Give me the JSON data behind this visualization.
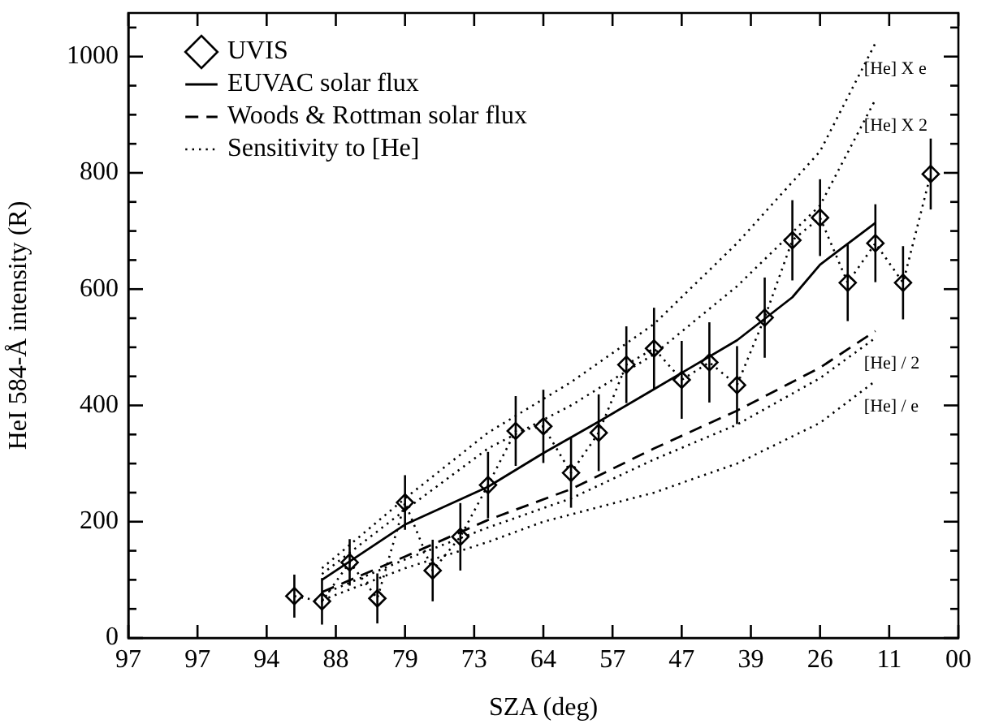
{
  "chart_data": {
    "type": "line",
    "xlabel": "SZA (deg)",
    "ylabel": "HeI 584-Å intensity (R)",
    "categories": [
      "97",
      null,
      null,
      null,
      null,
      "97",
      null,
      null,
      null,
      null,
      "94",
      null,
      null,
      null,
      null,
      "88",
      null,
      null,
      null,
      null,
      "79",
      null,
      null,
      null,
      null,
      "73",
      null,
      null,
      null,
      null,
      "64",
      null,
      null,
      null,
      null,
      "57",
      null,
      null,
      null,
      null,
      "47",
      null,
      null,
      null,
      null,
      "39",
      null,
      null,
      null,
      null,
      "26",
      null,
      null,
      null,
      null,
      "11",
      null,
      null,
      null,
      null,
      "00"
    ],
    "ylim": [
      0,
      1075
    ],
    "yticks": [
      0,
      {
        "value": 50,
        "label": null
      },
      {
        "value": 100,
        "label": null
      },
      {
        "value": 150,
        "label": null
      },
      200,
      {
        "value": 250,
        "label": null
      },
      {
        "value": 300,
        "label": null
      },
      {
        "value": 350,
        "label": null
      },
      400,
      {
        "value": 450,
        "label": null
      },
      {
        "value": 500,
        "label": null
      },
      {
        "value": 550,
        "label": null
      },
      600,
      {
        "value": 650,
        "label": null
      },
      {
        "value": 700,
        "label": null
      },
      {
        "value": 750,
        "label": null
      },
      800,
      {
        "value": 850,
        "label": null
      },
      {
        "value": 900,
        "label": null
      },
      {
        "value": 950,
        "label": null
      },
      1000,
      {
        "value": 1050,
        "label": null
      }
    ],
    "grid": false,
    "legend": "top left",
    "series": [
      {
        "name": "UVIS",
        "marker": "diamond",
        "line_style": "dotted",
        "color": "#000000",
        "values": [
          null,
          null,
          null,
          null,
          null,
          null,
          null,
          null,
          null,
          null,
          null,
          null,
          72,
          null,
          63,
          null,
          130,
          null,
          68,
          null,
          233,
          null,
          116,
          null,
          174,
          null,
          263,
          null,
          356,
          null,
          364,
          null,
          284,
          null,
          353,
          null,
          470,
          null,
          498,
          null,
          444,
          null,
          474,
          null,
          435,
          null,
          551,
          null,
          684,
          null,
          723,
          null,
          611,
          null,
          679,
          null,
          611,
          null,
          798,
          null,
          null
        ],
        "errors": [
          null,
          null,
          null,
          null,
          null,
          null,
          null,
          null,
          null,
          null,
          null,
          null,
          37,
          null,
          40,
          null,
          40,
          null,
          43,
          null,
          47,
          null,
          53,
          null,
          58,
          null,
          57,
          null,
          60,
          null,
          63,
          null,
          60,
          null,
          66,
          null,
          66,
          null,
          70,
          null,
          67,
          null,
          69,
          null,
          67,
          null,
          69,
          null,
          69,
          null,
          66,
          null,
          66,
          null,
          67,
          null,
          63,
          null,
          61,
          null,
          null
        ]
      },
      {
        "name": "EUVAC solar flux",
        "marker": "none",
        "line_style": "solid",
        "color": "#000000",
        "values": [
          null,
          null,
          null,
          null,
          null,
          null,
          null,
          null,
          null,
          null,
          null,
          null,
          null,
          null,
          100,
          null,
          null,
          null,
          null,
          null,
          195,
          null,
          null,
          null,
          null,
          null,
          260,
          null,
          null,
          null,
          318,
          null,
          null,
          null,
          372,
          null,
          null,
          null,
          428,
          null,
          456,
          null,
          null,
          null,
          512,
          null,
          549,
          null,
          586,
          null,
          642,
          null,
          null,
          null,
          714,
          null,
          null,
          null,
          null,
          null,
          null
        ]
      },
      {
        "name": "Woods & Rottman solar flux",
        "marker": "none",
        "line_style": "dashed",
        "color": "#000000",
        "values": [
          null,
          null,
          null,
          null,
          null,
          null,
          null,
          null,
          null,
          null,
          null,
          null,
          null,
          null,
          79,
          null,
          null,
          null,
          null,
          null,
          140,
          null,
          null,
          null,
          null,
          null,
          203,
          null,
          null,
          null,
          null,
          null,
          256,
          null,
          null,
          null,
          null,
          null,
          326,
          null,
          null,
          null,
          null,
          null,
          391,
          null,
          null,
          null,
          null,
          null,
          465,
          null,
          null,
          null,
          528,
          null,
          null,
          null,
          null,
          null,
          null
        ]
      },
      {
        "name": "Sensitivity to [He]",
        "marker": "none",
        "line_style": "dotted",
        "color": "#000000",
        "values": [
          null,
          null,
          null,
          null,
          null,
          null,
          null,
          null,
          null,
          null,
          null,
          null,
          null,
          null,
          120,
          null,
          null,
          null,
          null,
          null,
          240,
          null,
          null,
          null,
          null,
          null,
          353,
          null,
          null,
          null,
          null,
          null,
          440,
          null,
          null,
          null,
          null,
          null,
          540,
          null,
          null,
          null,
          null,
          null,
          679,
          null,
          null,
          null,
          null,
          null,
          837,
          null,
          null,
          null,
          1023,
          null,
          null,
          null,
          null,
          null,
          null
        ]
      },
      {
        "marker": "none",
        "line_style": "dotted",
        "color": "#000000",
        "values": [
          null,
          null,
          null,
          null,
          null,
          null,
          null,
          null,
          null,
          null,
          null,
          null,
          null,
          null,
          110,
          null,
          null,
          null,
          null,
          null,
          220,
          null,
          null,
          null,
          null,
          null,
          326,
          null,
          null,
          null,
          null,
          null,
          400,
          null,
          null,
          null,
          null,
          null,
          488,
          null,
          null,
          null,
          null,
          null,
          605,
          null,
          null,
          null,
          null,
          null,
          744,
          null,
          null,
          null,
          926,
          null,
          null,
          null,
          null,
          null,
          null
        ]
      },
      {
        "marker": "none",
        "line_style": "dotted",
        "color": "#000000",
        "values": [
          null,
          null,
          null,
          null,
          null,
          null,
          null,
          null,
          null,
          null,
          null,
          null,
          null,
          null,
          75,
          null,
          null,
          null,
          null,
          null,
          135,
          null,
          null,
          null,
          null,
          null,
          190,
          null,
          null,
          null,
          null,
          null,
          240,
          null,
          null,
          null,
          null,
          null,
          307,
          null,
          null,
          null,
          null,
          null,
          367,
          null,
          null,
          null,
          null,
          null,
          447,
          null,
          null,
          null,
          516,
          null,
          null,
          null,
          null,
          null,
          null
        ]
      },
      {
        "marker": "none",
        "line_style": "dotted",
        "color": "#000000",
        "values": [
          null,
          null,
          null,
          null,
          null,
          null,
          null,
          null,
          null,
          null,
          null,
          null,
          null,
          null,
          65,
          null,
          null,
          null,
          null,
          null,
          120,
          null,
          null,
          null,
          null,
          null,
          165,
          null,
          null,
          null,
          200,
          null,
          null,
          null,
          null,
          null,
          null,
          null,
          250,
          null,
          null,
          null,
          null,
          null,
          300,
          null,
          null,
          null,
          null,
          null,
          370,
          null,
          null,
          null,
          442,
          null,
          null,
          null,
          null,
          null,
          null
        ]
      }
    ],
    "annotations": [
      "[He] X e",
      "[He] X 2",
      "[He] / 2",
      "[He] / e"
    ]
  }
}
